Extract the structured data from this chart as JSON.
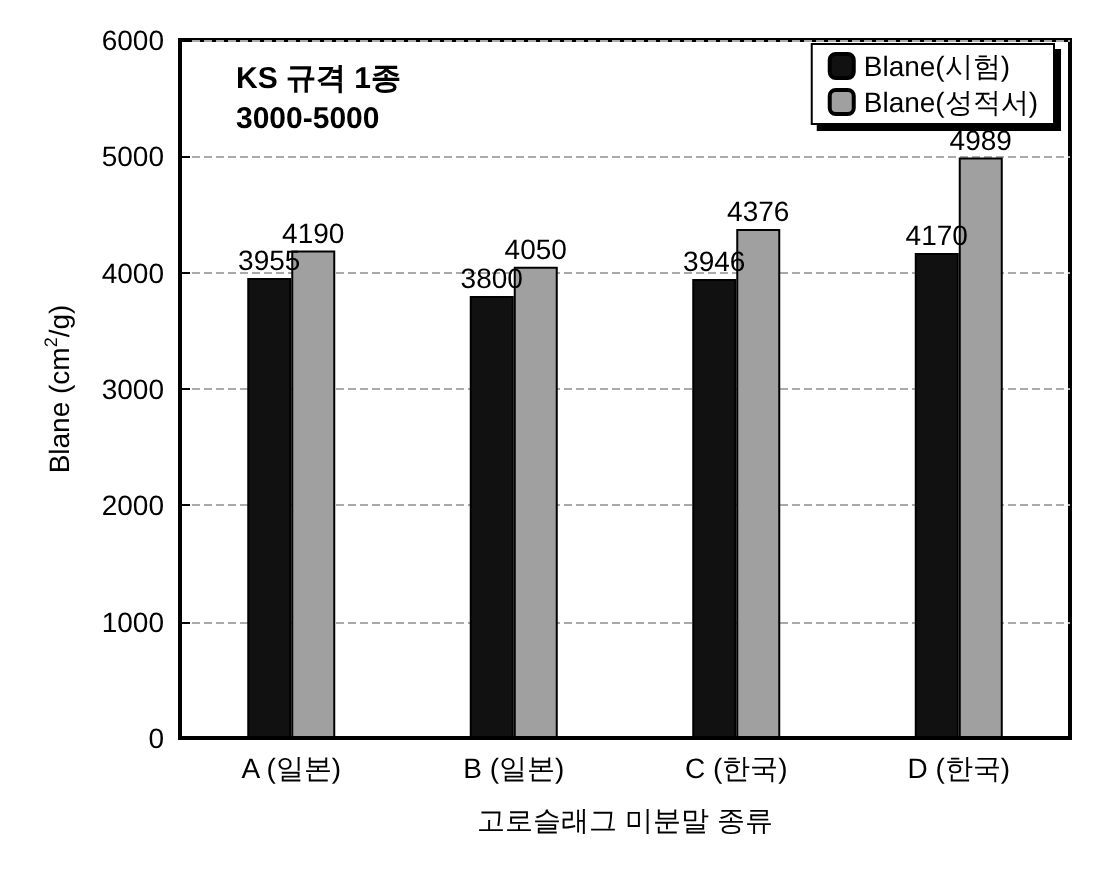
{
  "chart_data": {
    "type": "bar",
    "xlabel": "고로슬래그 미분말 종류",
    "ylabel": "Blane (cm$^{2}$/g)",
    "categories": [
      "A (일본)",
      "B (일본)",
      "C (한국)",
      "D (한국)"
    ],
    "series": [
      {
        "name": "Blane(시험)",
        "color": "#111111",
        "values": [
          3955,
          3800,
          3946,
          4170
        ]
      },
      {
        "name": "Blane(성적서)",
        "color": "#a0a0a0",
        "values": [
          4190,
          4050,
          4376,
          4989
        ]
      }
    ],
    "ylim": [
      0,
      6000
    ],
    "yticks": [
      0,
      1000,
      2000,
      3000,
      4000,
      5000,
      6000
    ],
    "grid": "y",
    "legend": "top right",
    "data_labels": true,
    "annotations": [
      "KS 규격 1종",
      "3000-5000"
    ]
  }
}
